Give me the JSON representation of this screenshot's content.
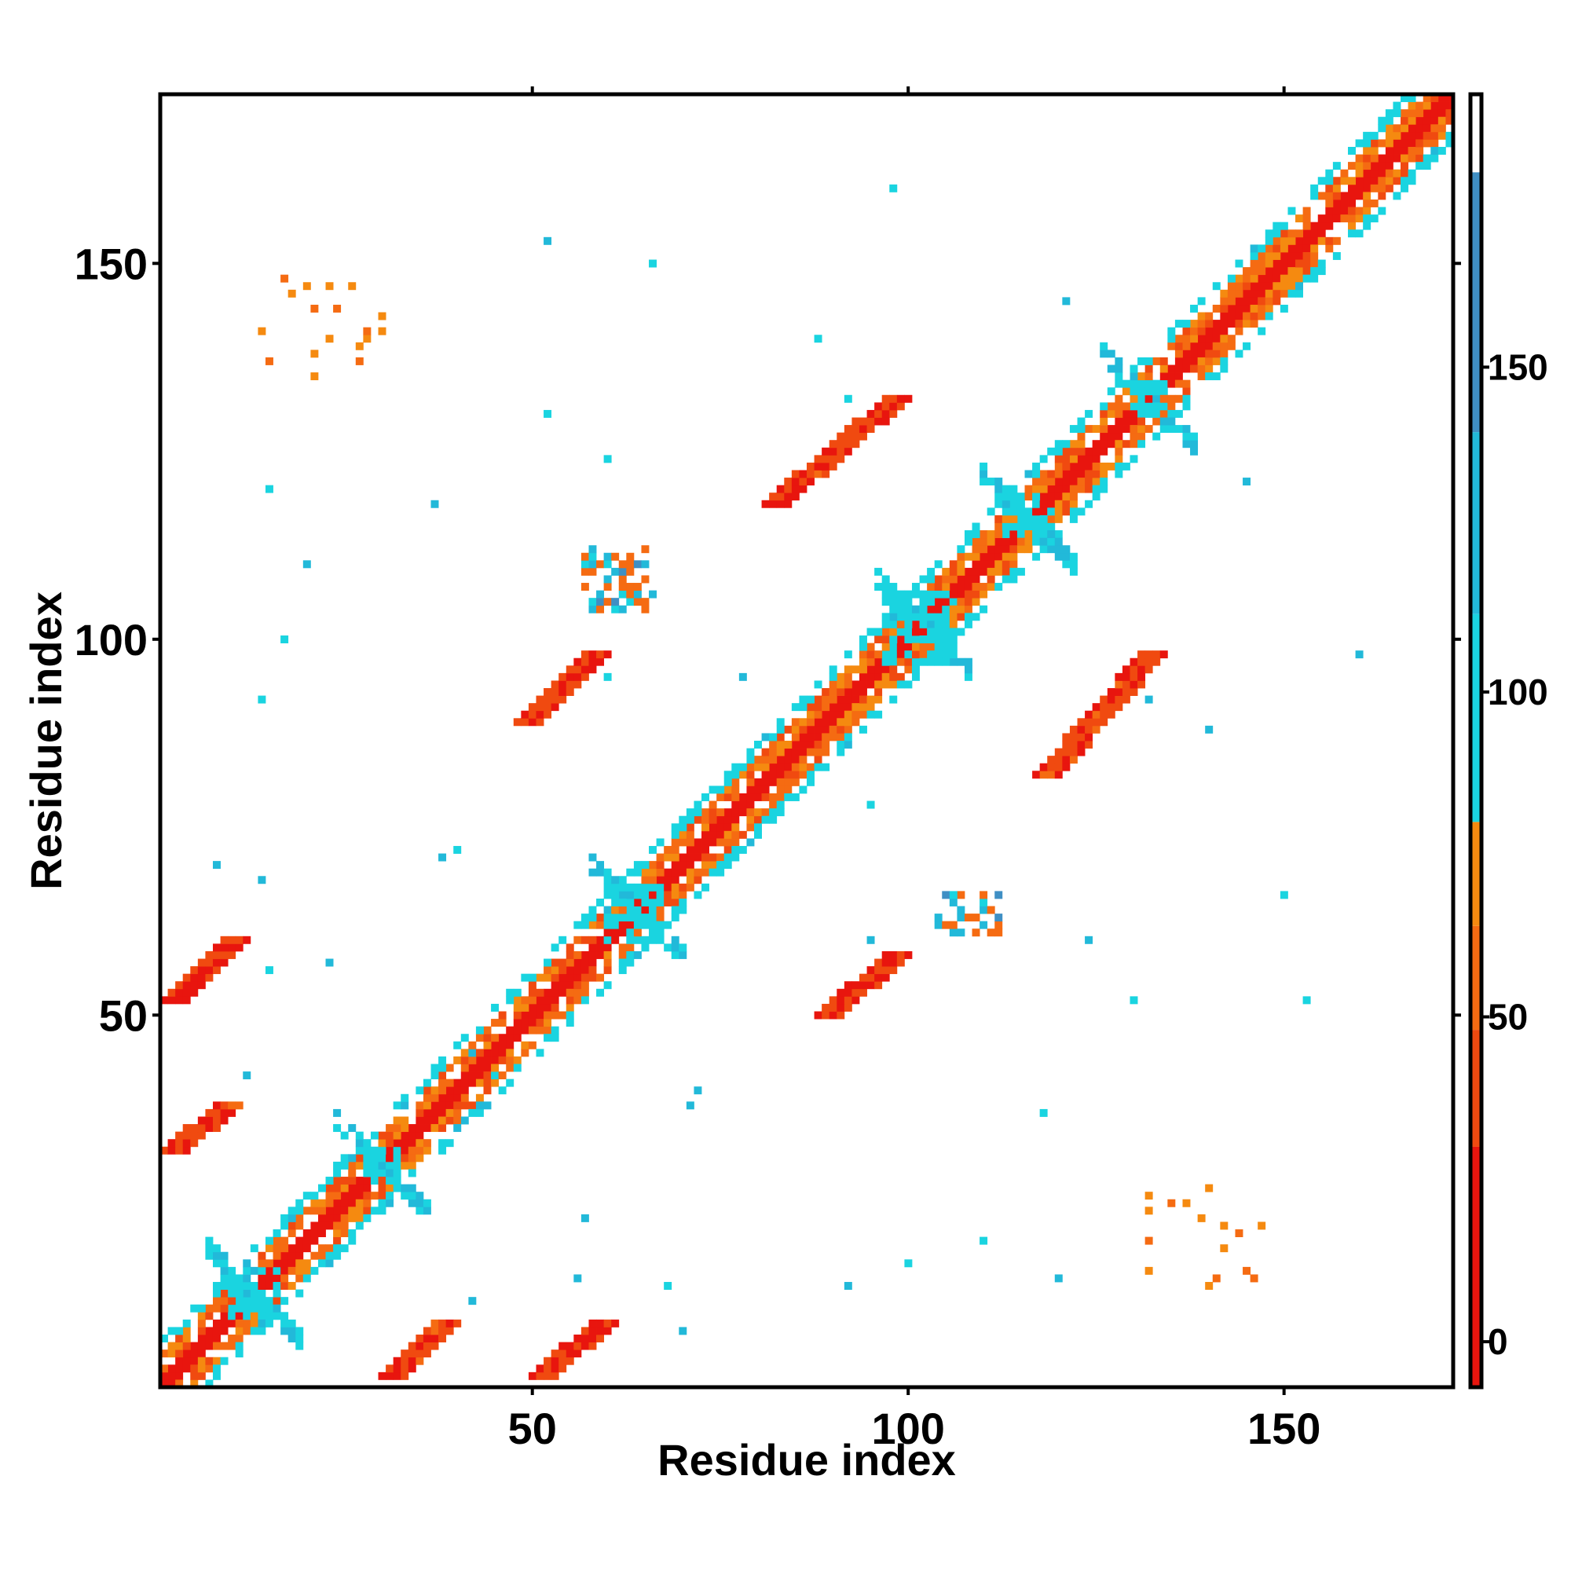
{
  "chart_data": {
    "type": "heatmap",
    "title": "",
    "xlabel": "Residue index",
    "ylabel": "Residue index",
    "xlim": [
      1,
      172
    ],
    "ylim": [
      1,
      172
    ],
    "x_ticks": [
      50,
      100,
      150
    ],
    "y_ticks": [
      50,
      100,
      150
    ],
    "grid": false,
    "legend": "right",
    "colorbar": {
      "ticks": [
        0,
        50,
        100,
        150
      ],
      "range": [
        -7,
        192
      ],
      "bands": [
        {
          "from": -7,
          "to": 30,
          "color": "#e8150e"
        },
        {
          "from": 30,
          "to": 48,
          "color": "#f04a10"
        },
        {
          "from": 48,
          "to": 64,
          "color": "#f56b12"
        },
        {
          "from": 64,
          "to": 80,
          "color": "#f58a10"
        },
        {
          "from": 80,
          "to": 112,
          "color": "#1ad4e0"
        },
        {
          "from": 112,
          "to": 140,
          "color": "#22b9d9"
        },
        {
          "from": 140,
          "to": 180,
          "color": "#3f8fc4"
        },
        {
          "from": 180,
          "to": 192,
          "color": "#ffffff"
        }
      ]
    },
    "contact_regions": [
      {
        "x": [
          1,
          172
        ],
        "y": [
          1,
          172
        ],
        "kind": "diagonal",
        "value": 10
      },
      {
        "x": [
          1,
          172
        ],
        "y": [
          1,
          172
        ],
        "kind": "diagonal-offset-4",
        "value": 55
      },
      {
        "x": [
          1,
          172
        ],
        "y": [
          1,
          172
        ],
        "kind": "diagonal-offset-6",
        "value": 95
      },
      {
        "x": [
          2,
          10
        ],
        "y": [
          52,
          60
        ],
        "kind": "strand",
        "value": 15
      },
      {
        "x": [
          2,
          9
        ],
        "y": [
          32,
          38
        ],
        "kind": "strand",
        "value": 20
      },
      {
        "x": [
          31,
          38
        ],
        "y": [
          2,
          9
        ],
        "kind": "strand",
        "value": 20
      },
      {
        "x": [
          51,
          59
        ],
        "y": [
          2,
          9
        ],
        "kind": "strand",
        "value": 15
      },
      {
        "x": [
          49,
          58
        ],
        "y": [
          89,
          98
        ],
        "kind": "strand",
        "value": 15
      },
      {
        "x": [
          89,
          98
        ],
        "y": [
          50,
          58
        ],
        "kind": "strand",
        "value": 15
      },
      {
        "x": [
          82,
          98
        ],
        "y": [
          118,
          132
        ],
        "kind": "strand",
        "value": 20
      },
      {
        "x": [
          118,
          132
        ],
        "y": [
          82,
          98
        ],
        "kind": "strand",
        "value": 20
      },
      {
        "x": [
          97,
          106
        ],
        "y": [
          97,
          106
        ],
        "kind": "cross",
        "value": 100
      },
      {
        "x": [
          60,
          67
        ],
        "y": [
          60,
          67
        ],
        "kind": "cross",
        "value": 100
      },
      {
        "x": [
          10,
          16
        ],
        "y": [
          10,
          16
        ],
        "kind": "cross",
        "value": 100
      },
      {
        "x": [
          28,
          32
        ],
        "y": [
          28,
          32
        ],
        "kind": "cross",
        "value": 100
      },
      {
        "x": [
          130,
          134
        ],
        "y": [
          130,
          134
        ],
        "kind": "cross",
        "value": 100
      },
      {
        "x": [
          113,
          119
        ],
        "y": [
          113,
          119
        ],
        "kind": "cross",
        "value": 100
      },
      {
        "x": [
          104,
          112
        ],
        "y": [
          61,
          66
        ],
        "kind": "patch",
        "value": 55
      },
      {
        "x": [
          57,
          65
        ],
        "y": [
          104,
          112
        ],
        "kind": "patch",
        "value": 55
      },
      {
        "x": [
          132,
          147
        ],
        "y": [
          14,
          28
        ],
        "kind": "sparse",
        "value": 60
      },
      {
        "x": [
          14,
          30
        ],
        "y": [
          135,
          148
        ],
        "kind": "sparse",
        "value": 60
      }
    ]
  }
}
